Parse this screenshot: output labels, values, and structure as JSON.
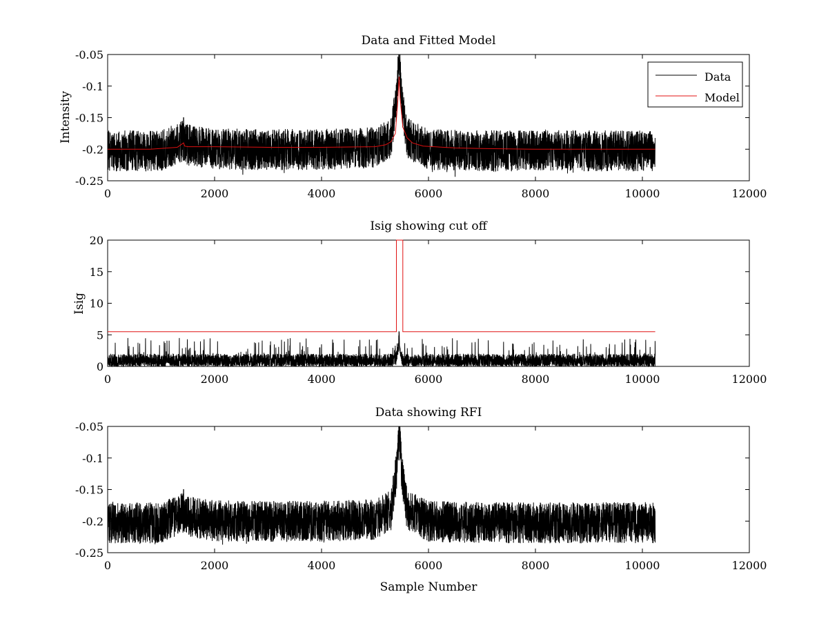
{
  "chart_data": [
    {
      "type": "line",
      "title": "Data and Fitted Model",
      "xlabel": "",
      "ylabel": "Intensity",
      "xlim": [
        0,
        12000
      ],
      "ylim": [
        -0.25,
        -0.05
      ],
      "y_reversed": true,
      "xticks": [
        0,
        2000,
        4000,
        6000,
        8000,
        10000,
        12000
      ],
      "xtick_labels": [
        "0",
        "2000",
        "4000",
        "6000",
        "8000",
        "10000",
        "12000"
      ],
      "yticks": [
        -0.05,
        -0.1,
        -0.15,
        -0.2,
        -0.25
      ],
      "ytick_labels": [
        "-0.05",
        "-0.1",
        "-0.15",
        "-0.2",
        "-0.25"
      ],
      "grid": false,
      "legend": {
        "position": "top-right",
        "entries": [
          "Data",
          "Model"
        ]
      },
      "series": [
        {
          "name": "Data",
          "color": "#000000",
          "kind": "noisy_signal",
          "n_samples": 10240,
          "baseline": -0.2,
          "noise_range": [
            -0.235,
            -0.17
          ],
          "peak": {
            "x": 5450,
            "y": -0.05
          },
          "spike": {
            "x": 1420,
            "y": -0.15
          },
          "x": [
            0,
            1000,
            1400,
            1440,
            2000,
            3000,
            4000,
            5000,
            5300,
            5400,
            5450,
            5500,
            5600,
            6000,
            7000,
            8000,
            9000,
            10240
          ],
          "y": [
            -0.2,
            -0.2,
            -0.185,
            -0.19,
            -0.197,
            -0.198,
            -0.198,
            -0.195,
            -0.18,
            -0.12,
            -0.05,
            -0.12,
            -0.18,
            -0.198,
            -0.2,
            -0.2,
            -0.2,
            -0.2
          ]
        },
        {
          "name": "Model",
          "color": "#e01010",
          "x": [
            0,
            800,
            1300,
            1420,
            1440,
            1500,
            2000,
            3000,
            4000,
            5000,
            5200,
            5300,
            5380,
            5430,
            5450,
            5470,
            5520,
            5600,
            5700,
            5900,
            6500,
            7000,
            8000,
            9000,
            10240
          ],
          "y": [
            -0.2,
            -0.2,
            -0.197,
            -0.19,
            -0.195,
            -0.196,
            -0.196,
            -0.197,
            -0.197,
            -0.196,
            -0.193,
            -0.188,
            -0.175,
            -0.12,
            -0.085,
            -0.12,
            -0.165,
            -0.182,
            -0.19,
            -0.195,
            -0.198,
            -0.199,
            -0.2,
            -0.2,
            -0.2
          ]
        }
      ]
    },
    {
      "type": "line",
      "title": "Isig showing cut off",
      "xlabel": "",
      "ylabel": "Isig",
      "xlim": [
        0,
        12000
      ],
      "ylim": [
        0,
        20
      ],
      "xticks": [
        0,
        2000,
        4000,
        6000,
        8000,
        10000,
        12000
      ],
      "xtick_labels": [
        "0",
        "2000",
        "4000",
        "6000",
        "8000",
        "10000",
        "12000"
      ],
      "yticks": [
        0,
        5,
        10,
        15,
        20
      ],
      "ytick_labels": [
        "0",
        "5",
        "10",
        "15",
        "20"
      ],
      "grid": false,
      "series": [
        {
          "color": "#000000",
          "kind": "noise_floor",
          "n_samples": 10240,
          "noise_range": [
            0,
            2.5
          ],
          "peak": {
            "x": 5450,
            "y": 5.5
          },
          "x": [
            0,
            2000,
            4000,
            5400,
            5450,
            5500,
            6000,
            8000,
            10240
          ],
          "y": [
            1.0,
            1.0,
            1.0,
            2.0,
            5.5,
            2.0,
            1.0,
            1.0,
            1.0
          ]
        },
        {
          "color": "#e01010",
          "x": [
            0,
            5400,
            5400,
            5520,
            5520,
            10240
          ],
          "y": [
            5.5,
            5.5,
            20,
            20,
            5.5,
            5.5
          ]
        }
      ]
    },
    {
      "type": "line",
      "title": "Data showing RFI",
      "xlabel": "Sample Number",
      "ylabel": "",
      "xlim": [
        0,
        12000
      ],
      "ylim": [
        -0.25,
        -0.05
      ],
      "y_reversed": true,
      "xticks": [
        0,
        2000,
        4000,
        6000,
        8000,
        10000,
        12000
      ],
      "xtick_labels": [
        "0",
        "2000",
        "4000",
        "6000",
        "8000",
        "10000",
        "12000"
      ],
      "yticks": [
        -0.05,
        -0.1,
        -0.15,
        -0.2,
        -0.25
      ],
      "ytick_labels": [
        "-0.05",
        "-0.1",
        "-0.15",
        "-0.2",
        "-0.25"
      ],
      "grid": false,
      "series": [
        {
          "color": "#000000",
          "kind": "noisy_signal",
          "n_samples": 10240,
          "baseline": -0.2,
          "noise_range": [
            -0.235,
            -0.17
          ],
          "peak": {
            "x": 5450,
            "y": -0.05
          },
          "spike": {
            "x": 1420,
            "y": -0.15
          },
          "x": [
            0,
            1000,
            1400,
            1440,
            2000,
            3000,
            4000,
            5000,
            5300,
            5400,
            5450,
            5500,
            5600,
            6000,
            7000,
            8000,
            9000,
            10240
          ],
          "y": [
            -0.2,
            -0.2,
            -0.185,
            -0.19,
            -0.197,
            -0.198,
            -0.198,
            -0.195,
            -0.18,
            -0.12,
            -0.05,
            -0.12,
            -0.18,
            -0.198,
            -0.2,
            -0.2,
            -0.2,
            -0.2
          ]
        }
      ]
    }
  ]
}
